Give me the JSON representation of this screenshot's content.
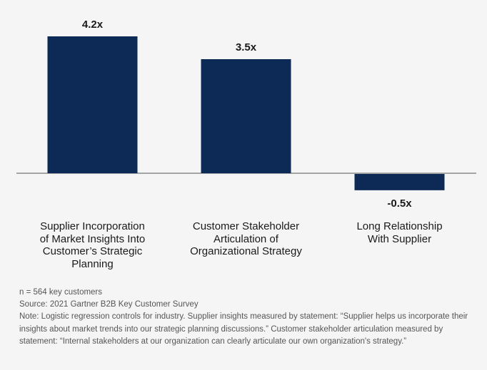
{
  "chart_data": {
    "type": "bar",
    "title": "",
    "xlabel": "",
    "ylabel": "",
    "categories": [
      "Supplier Incorporation of Market Insights Into Customer's Strategic Planning",
      "Customer Stakeholder Articulation of Organizational Strategy",
      "Long Relationship With Supplier"
    ],
    "category_lines": [
      [
        "Supplier Incorporation",
        "of Market Insights Into",
        "Customer’s Strategic",
        "Planning"
      ],
      [
        "Customer Stakeholder",
        "Articulation of",
        "Organizational Strategy"
      ],
      [
        "Long Relationship",
        "With Supplier"
      ]
    ],
    "values": [
      4.2,
      3.5,
      -0.5
    ],
    "value_labels": [
      "4.2x",
      "3.5x",
      "-0.5x"
    ],
    "ylim": [
      -0.5,
      4.2
    ],
    "grid": false,
    "colors": {
      "bar": "#0c2a55",
      "axis": "#8a8a8a",
      "label": "#1a1a1a",
      "background": "#f5f5f5"
    }
  },
  "footnotes": {
    "n": "n = 564 key customers",
    "source": "Source: 2021 Gartner B2B Key Customer Survey",
    "note": "Note: Logistic regression controls for industry. Supplier insights measured by statement: “Supplier helps us incorporate their insights about market trends into our strategic planning discussions.” Customer stakeholder articulation measured by statement: “Internal stakeholders at our organization can clearly articulate our own organization's strategy.”"
  }
}
